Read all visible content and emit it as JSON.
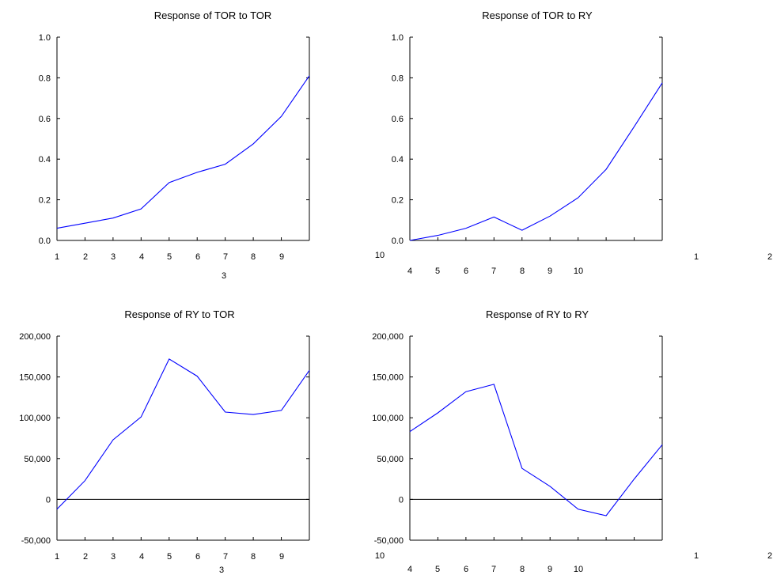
{
  "colors": {
    "series": "#0000ff",
    "axis": "#000000",
    "zero_line": "#000000",
    "background": "#ffffff"
  },
  "chart_data": [
    {
      "type": "line",
      "title": "Response of TOR to TOR",
      "x": [
        1,
        2,
        3,
        4,
        5,
        6,
        7,
        8,
        9,
        10
      ],
      "series": [
        {
          "values": [
            0.06,
            0.085,
            0.11,
            0.155,
            0.285,
            0.335,
            0.375,
            0.475,
            0.61,
            0.81
          ]
        }
      ],
      "ylim": [
        0.0,
        1.0
      ],
      "yticks": [
        0.0,
        0.2,
        0.4,
        0.6,
        0.8,
        1.0
      ],
      "ytick_labels": [
        "0.0",
        "0.2",
        "0.4",
        "0.6",
        "0.8",
        "1.0"
      ],
      "xtick_labels": [
        "1",
        "2",
        "3",
        "4",
        "5",
        "6",
        "7",
        "8",
        "9"
      ],
      "extra_labels": [
        "3"
      ],
      "zero_line": false
    },
    {
      "type": "line",
      "title": "Response of TOR to RY",
      "x": [
        1,
        2,
        3,
        4,
        5,
        6,
        7,
        8,
        9,
        10
      ],
      "series": [
        {
          "values": [
            0.0,
            0.025,
            0.06,
            0.115,
            0.05,
            0.12,
            0.21,
            0.35,
            0.56,
            0.775
          ]
        }
      ],
      "ylim": [
        0.0,
        1.0
      ],
      "yticks": [
        0.0,
        0.2,
        0.4,
        0.6,
        0.8,
        1.0
      ],
      "ytick_labels": [
        "0.0",
        "0.2",
        "0.4",
        "0.6",
        "0.8",
        "1.0"
      ],
      "xtick_labels": [
        "4",
        "5",
        "6",
        "7",
        "8",
        "9",
        "10"
      ],
      "extra_labels": [
        "10",
        "1",
        "2"
      ],
      "zero_line": false
    },
    {
      "type": "line",
      "title": "Response of RY to TOR",
      "x": [
        1,
        2,
        3,
        4,
        5,
        6,
        7,
        8,
        9,
        10
      ],
      "series": [
        {
          "values": [
            -12000,
            23000,
            73000,
            101000,
            172000,
            151000,
            107000,
            104000,
            109000,
            158000
          ]
        }
      ],
      "ylim": [
        -50000,
        200000
      ],
      "yticks": [
        -50000,
        0,
        50000,
        100000,
        150000,
        200000
      ],
      "ytick_labels": [
        "-50,000",
        "0",
        "50,000",
        "100,000",
        "150,000",
        "200,000"
      ],
      "xtick_labels": [
        "1",
        "2",
        "3",
        "4",
        "5",
        "6",
        "7",
        "8",
        "9"
      ],
      "extra_labels": [
        "3"
      ],
      "zero_line": true
    },
    {
      "type": "line",
      "title": "Response of RY to RY",
      "x": [
        1,
        2,
        3,
        4,
        5,
        6,
        7,
        8,
        9,
        10
      ],
      "series": [
        {
          "values": [
            83000,
            106000,
            132000,
            141000,
            38000,
            16000,
            -12000,
            -20000,
            25000,
            67000
          ]
        }
      ],
      "ylim": [
        -50000,
        200000
      ],
      "yticks": [
        -50000,
        0,
        50000,
        100000,
        150000,
        200000
      ],
      "ytick_labels": [
        "-50,000",
        "0",
        "50,000",
        "100,000",
        "150,000",
        "200,000"
      ],
      "xtick_labels": [
        "4",
        "5",
        "6",
        "7",
        "8",
        "9",
        "10"
      ],
      "extra_labels": [
        "10",
        "1",
        "2"
      ],
      "zero_line": true
    }
  ]
}
